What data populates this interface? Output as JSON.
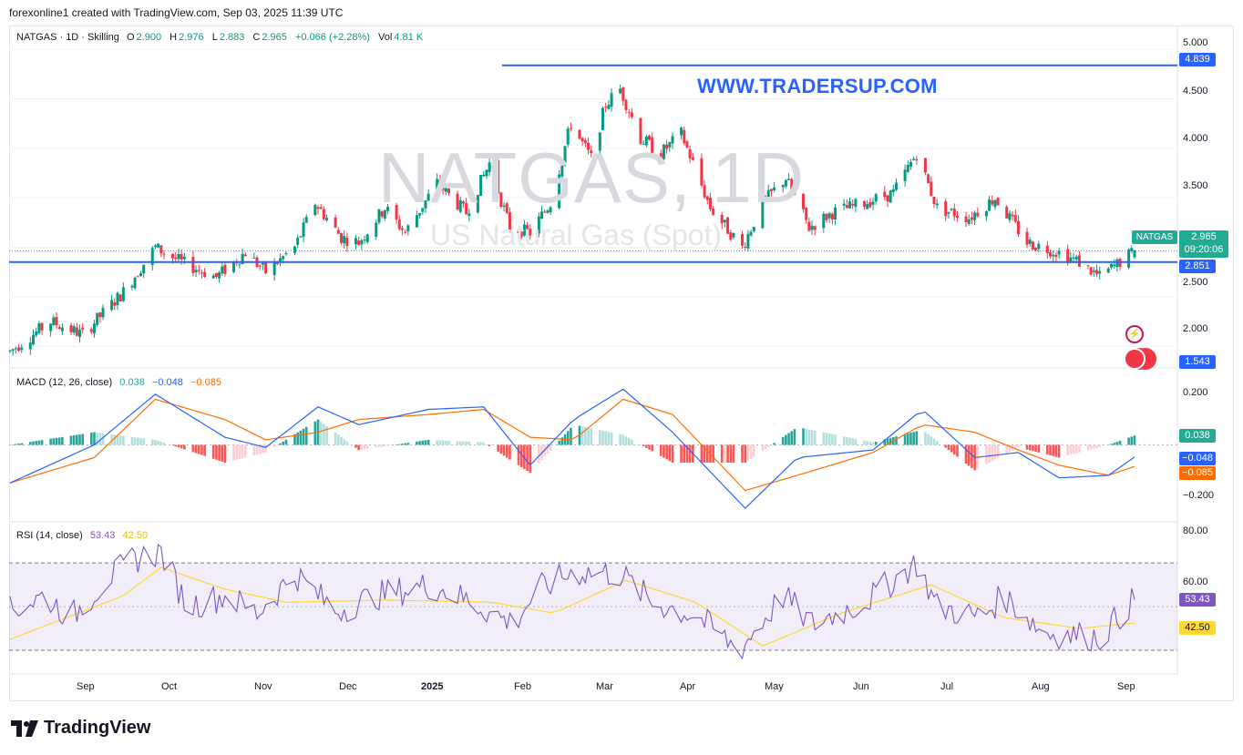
{
  "header": {
    "created_line": "forexonline1 created with TradingView.com, Sep 03, 2025 11:39 UTC"
  },
  "legend": {
    "symbol": "NATGAS · 1D · Skilling",
    "o_label": "O",
    "o": "2.900",
    "h_label": "H",
    "h": "2.976",
    "l_label": "L",
    "l": "2.883",
    "c_label": "C",
    "c": "2.965",
    "change": "+0.066 (+2.28%)",
    "vol_label": "Vol",
    "vol": "4.81 K"
  },
  "watermark": {
    "symbol": "NATGAS, 1D",
    "name": "US Natural Gas (Spot)"
  },
  "site_text": "WWW.TRADERSUP.COM",
  "price_axis": {
    "ticks": [
      "5.000",
      "4.500",
      "4.000",
      "3.500",
      "2.500",
      "2.000"
    ],
    "tags": {
      "high_line": "4.839",
      "current_symbol": "NATGAS",
      "current": "2.965",
      "countdown": "09:20:06",
      "support_line": "2.851",
      "low": "1.543"
    }
  },
  "macd": {
    "legend_title": "MACD (12, 26, close)",
    "hist": "0.038",
    "macd": "−0.048",
    "signal": "−0.085",
    "ticks": [
      "0.200",
      "−0.200"
    ],
    "tags": {
      "hist": "0.038",
      "macd": "−0.048",
      "signal": "−0.085"
    }
  },
  "rsi": {
    "legend_title": "RSI (14, close)",
    "rsi": "53.43",
    "ma": "42.50",
    "ticks": [
      "80.00",
      "60.00"
    ],
    "tags": {
      "rsi": "53.43",
      "ma": "42.50"
    }
  },
  "time_axis": [
    "Sep",
    "Oct",
    "Nov",
    "Dec",
    "2025",
    "Feb",
    "Mar",
    "Apr",
    "May",
    "Jun",
    "Jul",
    "Aug",
    "Sep"
  ],
  "footer": {
    "logo_text": "TradingView"
  },
  "colors": {
    "up": "#089981",
    "down": "#f23645",
    "line": "#2962ff",
    "signal": "#ff6d00",
    "rsi": "#7e57c2",
    "rsi_ma": "#fdd835"
  },
  "chart_data": {
    "type": "candlestick",
    "price_ylim": [
      1.8,
      5.15
    ],
    "high_level": 4.839,
    "support_level": 2.851,
    "last": {
      "open": 2.9,
      "high": 2.976,
      "low": 2.883,
      "close": 2.965
    },
    "anchors": [
      [
        "2024-08-12",
        1.95
      ],
      [
        "2024-08-26",
        2.25
      ],
      [
        "2024-09-06",
        2.12
      ],
      [
        "2024-09-20",
        2.55
      ],
      [
        "2024-10-01",
        3.0
      ],
      [
        "2024-10-10",
        2.85
      ],
      [
        "2024-10-22",
        2.7
      ],
      [
        "2024-11-01",
        2.95
      ],
      [
        "2024-11-08",
        2.75
      ],
      [
        "2024-11-18",
        3.0
      ],
      [
        "2024-11-25",
        3.45
      ],
      [
        "2024-12-04",
        3.1
      ],
      [
        "2024-12-10",
        3.05
      ],
      [
        "2024-12-19",
        3.4
      ],
      [
        "2024-12-26",
        3.15
      ],
      [
        "2025-01-06",
        3.65
      ],
      [
        "2025-01-16",
        3.35
      ],
      [
        "2025-01-24",
        3.85
      ],
      [
        "2025-01-31",
        3.2
      ],
      [
        "2025-02-07",
        3.15
      ],
      [
        "2025-02-14",
        3.45
      ],
      [
        "2025-02-21",
        4.25
      ],
      [
        "2025-02-28",
        3.9
      ],
      [
        "2025-03-05",
        4.45
      ],
      [
        "2025-03-10",
        4.6
      ],
      [
        "2025-03-17",
        4.1
      ],
      [
        "2025-03-24",
        3.95
      ],
      [
        "2025-03-31",
        4.15
      ],
      [
        "2025-04-10",
        3.4
      ],
      [
        "2025-04-21",
        3.0
      ],
      [
        "2025-04-28",
        3.45
      ],
      [
        "2025-05-06",
        3.7
      ],
      [
        "2025-05-14",
        3.2
      ],
      [
        "2025-05-22",
        3.35
      ],
      [
        "2025-06-02",
        3.45
      ],
      [
        "2025-06-12",
        3.55
      ],
      [
        "2025-06-20",
        3.95
      ],
      [
        "2025-06-27",
        3.4
      ],
      [
        "2025-07-08",
        3.3
      ],
      [
        "2025-07-17",
        3.5
      ],
      [
        "2025-07-28",
        3.05
      ],
      [
        "2025-08-08",
        2.95
      ],
      [
        "2025-08-15",
        2.85
      ],
      [
        "2025-08-22",
        2.7
      ],
      [
        "2025-09-03",
        2.965
      ]
    ],
    "macd_ylim": [
      -0.3,
      0.3
    ],
    "macd_anchors": [
      [
        "2024-08-12",
        -0.15,
        -0.15
      ],
      [
        "2024-09-10",
        0.0,
        -0.05
      ],
      [
        "2024-10-01",
        0.2,
        0.18
      ],
      [
        "2024-10-25",
        0.03,
        0.1
      ],
      [
        "2024-11-08",
        -0.01,
        0.02
      ],
      [
        "2024-11-26",
        0.15,
        0.05
      ],
      [
        "2024-12-10",
        0.08,
        0.1
      ],
      [
        "2025-01-03",
        0.14,
        0.12
      ],
      [
        "2025-01-22",
        0.15,
        0.14
      ],
      [
        "2025-02-07",
        -0.08,
        0.03
      ],
      [
        "2025-02-22",
        0.1,
        0.02
      ],
      [
        "2025-03-11",
        0.22,
        0.18
      ],
      [
        "2025-03-28",
        0.05,
        0.12
      ],
      [
        "2025-04-22",
        -0.25,
        -0.18
      ],
      [
        "2025-05-10",
        -0.05,
        -0.12
      ],
      [
        "2025-06-05",
        -0.02,
        -0.03
      ],
      [
        "2025-06-22",
        0.14,
        0.08
      ],
      [
        "2025-07-10",
        -0.05,
        0.05
      ],
      [
        "2025-07-25",
        -0.03,
        -0.02
      ],
      [
        "2025-08-08",
        -0.13,
        -0.08
      ],
      [
        "2025-08-25",
        -0.12,
        -0.12
      ],
      [
        "2025-09-03",
        -0.048,
        -0.085
      ]
    ],
    "rsi_ylim": [
      20,
      88
    ],
    "rsi_bands": [
      30,
      70
    ],
    "rsi_anchors": [
      [
        "2024-08-12",
        48
      ],
      [
        "2024-08-24",
        55
      ],
      [
        "2024-09-02",
        45
      ],
      [
        "2024-09-14",
        62
      ],
      [
        "2024-09-24",
        72
      ],
      [
        "2024-10-03",
        75
      ],
      [
        "2024-10-12",
        50
      ],
      [
        "2024-10-25",
        55
      ],
      [
        "2024-11-05",
        47
      ],
      [
        "2024-11-18",
        65
      ],
      [
        "2024-12-02",
        48
      ],
      [
        "2024-12-16",
        55
      ],
      [
        "2025-01-04",
        60
      ],
      [
        "2025-01-18",
        52
      ],
      [
        "2025-02-01",
        42
      ],
      [
        "2025-02-10",
        58
      ],
      [
        "2025-02-22",
        66
      ],
      [
        "2025-03-10",
        65
      ],
      [
        "2025-03-21",
        52
      ],
      [
        "2025-04-05",
        46
      ],
      [
        "2025-04-20",
        30
      ],
      [
        "2025-05-05",
        55
      ],
      [
        "2025-05-15",
        42
      ],
      [
        "2025-06-02",
        52
      ],
      [
        "2025-06-20",
        70
      ],
      [
        "2025-06-27",
        50
      ],
      [
        "2025-07-12",
        45
      ],
      [
        "2025-07-20",
        55
      ],
      [
        "2025-08-03",
        38
      ],
      [
        "2025-08-22",
        36
      ],
      [
        "2025-09-03",
        53.43
      ]
    ],
    "rsi_ma_anchors": [
      [
        "2024-08-12",
        35
      ],
      [
        "2024-09-20",
        55
      ],
      [
        "2024-10-03",
        68
      ],
      [
        "2024-10-25",
        58
      ],
      [
        "2024-11-15",
        52
      ],
      [
        "2024-12-20",
        53
      ],
      [
        "2025-01-25",
        52
      ],
      [
        "2025-02-15",
        47
      ],
      [
        "2025-03-12",
        62
      ],
      [
        "2025-04-05",
        52
      ],
      [
        "2025-04-28",
        32
      ],
      [
        "2025-05-25",
        47
      ],
      [
        "2025-06-25",
        60
      ],
      [
        "2025-07-20",
        45
      ],
      [
        "2025-08-15",
        40
      ],
      [
        "2025-09-03",
        42.5
      ]
    ]
  }
}
